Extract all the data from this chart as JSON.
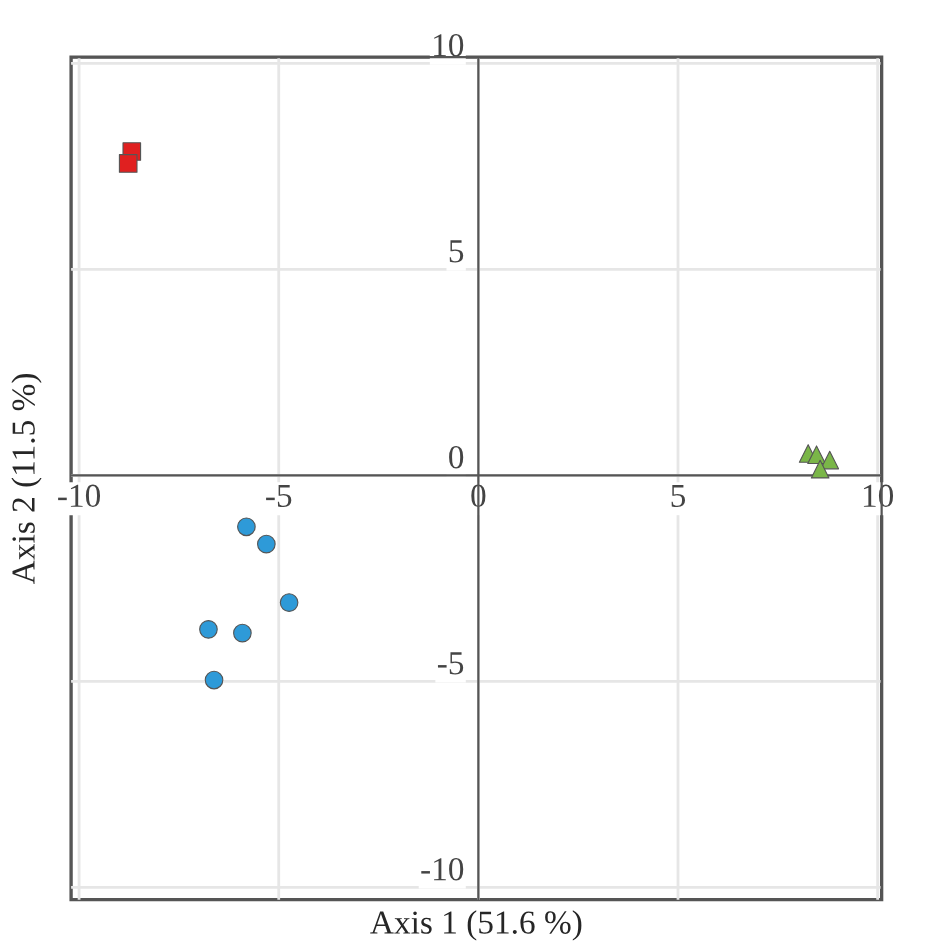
{
  "chart_data": {
    "type": "scatter",
    "xlabel": "Axis 1 (51.6 %)",
    "ylabel": "Axis 2 (11.5 %)",
    "xlim": [
      -10.2,
      10.1
    ],
    "ylim": [
      -10.3,
      10.15
    ],
    "xticks": [
      -10,
      -5,
      0,
      5,
      10
    ],
    "yticks": [
      -10,
      -5,
      0,
      5,
      10
    ],
    "grid": true,
    "legend": false,
    "series": [
      {
        "color": "#e02020",
        "marker": "square",
        "x": [
          -8.68,
          -8.77
        ],
        "values": [
          7.86,
          7.57
        ]
      },
      {
        "color": "#2e9ad8",
        "marker": "circle",
        "x": [
          -5.81,
          -5.31,
          -4.74,
          -6.76,
          -5.91,
          -6.62
        ],
        "values": [
          -1.25,
          -1.67,
          -3.09,
          -3.74,
          -3.83,
          -4.97
        ]
      },
      {
        "color": "#7ab648",
        "marker": "triangle",
        "x": [
          8.26,
          8.47,
          8.8,
          8.56
        ],
        "values": [
          0.53,
          0.5,
          0.37,
          0.15
        ]
      }
    ]
  }
}
